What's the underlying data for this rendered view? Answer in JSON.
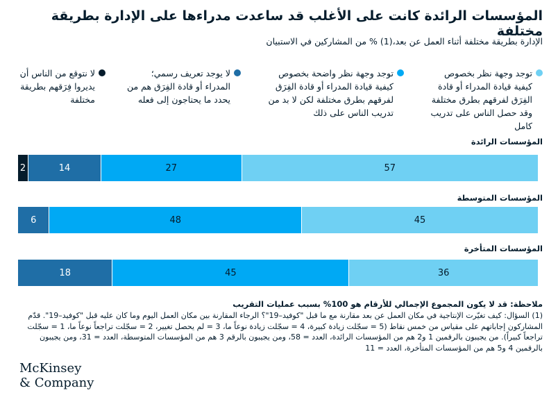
{
  "title": "المؤسسات الرائدة كانت على الأغلب قد ساعدت مدراءها على الإدارة بطريقة مختلفة",
  "subtitle": "الإدارة بطريقة مختلفة أثناء العمل عن بعد،(1) % من المشاركين في الاستبيان",
  "chart_data": {
    "type": "bar",
    "orientation": "horizontal-stacked",
    "unit": "%",
    "legend_placement": "top",
    "series": [
      {
        "name": "توجد وجهة نظر بخصوص كيفية قيادة المدراء أو قادة الفِرَق لفرقهم بطرق مختلفة وقد حصل الناس على تدريب كامل",
        "color": "#6fd0f3",
        "values": [
          57,
          45,
          36
        ]
      },
      {
        "name": "توجد وجهة نظر واضحة بخصوص كيفية قيادة المدراء أو قادة الفِرَق لفرقهم بطرق مختلفة لكن لا بد من تدريب الناس على ذلك",
        "color": "#00a9f4",
        "values": [
          27,
          48,
          45
        ]
      },
      {
        "name": "لا يوجد تعريف رسمي؛ المدراء أو قادة الفِرَق هم من يحدد ما يحتاجون إلى فعله",
        "color": "#1f6ea6",
        "values": [
          14,
          6,
          18
        ]
      },
      {
        "name": "لا نتوقع من الناس أن يديروا فِرَقهم بطريقة مختلفة",
        "color": "#051c2c",
        "values": [
          2,
          0,
          0
        ]
      }
    ],
    "categories": [
      "المؤسسات الرائدة",
      "المؤسسات المتوسطة",
      "المؤسسات المتأخرة"
    ]
  },
  "note": {
    "heading": "ملاحظة: قد لا يكون المجموع الإجمالي للأرقام هو 100% بسبب عمليات التقريب",
    "footnote": "(1) السؤال: كيف تغيّرت الإنتاجية في مكان العمل عن بعد مقارنة مع ما قبل \"كوفيد–19\"؟ الرجاء المقارنة بين مكان العمل اليوم وما كان عليه قبل \"كوفيد–19\". قدّم المشاركون إجاباتهم على مقياس من خمس نقاط (5 = سجّلت زيادة كبيرة، 4 = سجّلت زيادة نوعاً ما، 3 = لم يحصل تغيير، 2 = سجّلت تراجعاً نوعاً ما، 1 = سجّلت تراجعاً كبيراً). من يجيبون بالرقمين 1 و2 هم من المؤسسات الرائدة، العدد = 58، ومن يجيبون بالرقم 3 هم من المؤسسات المتوسطة، العدد = 31، ومن يجيبون بالرقمين 4 و5 هم من المؤسسات المتأخرة، العدد = 11"
  },
  "logo": {
    "line1": "McKinsey",
    "line2": "& Company"
  }
}
